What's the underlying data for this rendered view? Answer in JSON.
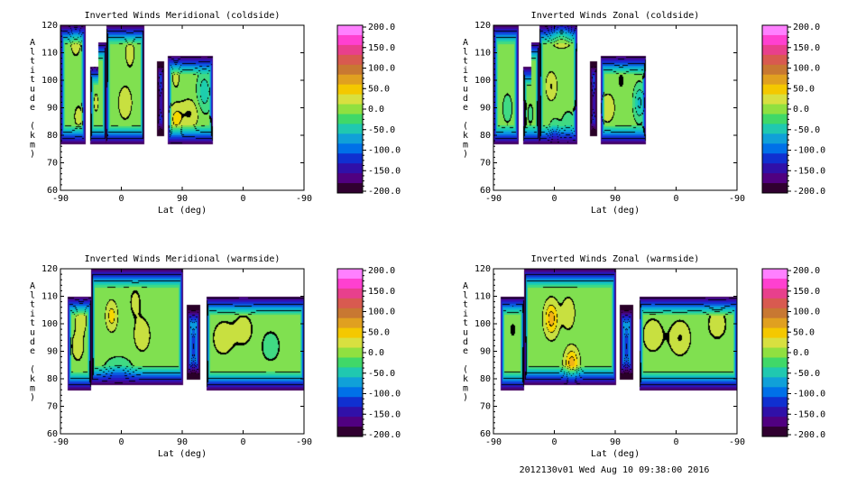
{
  "footer": "2012130v01 Wed Aug 10 09:38:00 2016",
  "colorbar": {
    "ticks": [
      "200.0",
      "150.0",
      "100.0",
      "50.0",
      "0.0",
      "-50.0",
      "-100.0",
      "-150.0",
      "-200.0"
    ],
    "colors": [
      "#ff80ff",
      "#ff40d0",
      "#e8408c",
      "#d85a50",
      "#c87832",
      "#e0a020",
      "#f4c800",
      "#d8e040",
      "#90e040",
      "#40d868",
      "#20c8b0",
      "#10a0d8",
      "#0070e8",
      "#1030d0",
      "#3010a8",
      "#500080",
      "#300030"
    ]
  },
  "colormap_stops": [
    {
      "v": -200,
      "c": "#2a0028"
    },
    {
      "v": -170,
      "c": "#50007a"
    },
    {
      "v": -140,
      "c": "#2818c0"
    },
    {
      "v": -110,
      "c": "#0a40e0"
    },
    {
      "v": -80,
      "c": "#0a98e0"
    },
    {
      "v": -50,
      "c": "#10c8c0"
    },
    {
      "v": -25,
      "c": "#30d890"
    },
    {
      "v": 0,
      "c": "#80e050"
    },
    {
      "v": 20,
      "c": "#c8e040"
    },
    {
      "v": 40,
      "c": "#f8d800"
    },
    {
      "v": 70,
      "c": "#f0a020"
    },
    {
      "v": 100,
      "c": "#e07840"
    },
    {
      "v": 130,
      "c": "#e84a78"
    },
    {
      "v": 170,
      "c": "#ff40c0"
    },
    {
      "v": 200,
      "c": "#ff80ff"
    }
  ],
  "chart_data": [
    {
      "type": "heatmap",
      "title": "Inverted Winds Meridional (coldside)",
      "xlabel": "Lat (deg)",
      "ylabel": "Altitude (km)",
      "xticks": [
        "-90",
        "0",
        "90",
        "0",
        "-90"
      ],
      "yticks": [
        "60",
        "70",
        "80",
        "90",
        "100",
        "110",
        "120"
      ],
      "ylim": [
        60,
        120
      ],
      "zlim": [
        -200,
        200
      ],
      "contours": true,
      "segments": [
        {
          "lat_range": [
            -90,
            -54
          ],
          "alt_range": [
            77,
            120
          ],
          "bumps": [
            [
              -68,
              115,
              25,
              8,
              6
            ],
            [
              -64,
              87,
              16,
              8,
              5
            ]
          ]
        },
        {
          "lat_range": [
            -47,
            -23
          ],
          "alt_range": [
            77,
            105
          ],
          "top_step": {
            "lat": -34,
            "from": 105,
            "to": 114
          },
          "bumps": [
            [
              -40,
              108,
              20,
              4,
              4
            ],
            [
              -38,
              92,
              18,
              4,
              4
            ]
          ]
        },
        {
          "lat_range": [
            -23,
            33
          ],
          "alt_range": [
            77,
            120
          ],
          "bumps": [
            [
              -25,
              90,
              22,
              8,
              5
            ],
            [
              5,
              92,
              26,
              10,
              6
            ],
            [
              12,
              110,
              18,
              8,
              6
            ]
          ]
        },
        {
          "lat_range": [
            52,
            63
          ],
          "alt_range": [
            80,
            107
          ],
          "floor": -60,
          "bumps": [
            [
              57,
              92,
              -60,
              3,
              8
            ]
          ]
        },
        {
          "lat_range": [
            68,
            135
          ],
          "alt_range": [
            77,
            109
          ],
          "bumps": [
            [
              80,
              86,
              35,
              10,
              5
            ],
            [
              100,
              88,
              30,
              14,
              5
            ],
            [
              122,
              96,
              -45,
              10,
              7
            ],
            [
              80,
              102,
              20,
              6,
              5
            ]
          ]
        }
      ]
    },
    {
      "type": "heatmap",
      "title": "Inverted Winds Zonal (coldside)",
      "xlabel": "Lat (deg)",
      "ylabel": "Altitude (km)",
      "xticks": [
        "-90",
        "0",
        "90",
        "0",
        "-90"
      ],
      "yticks": [
        "60",
        "70",
        "80",
        "90",
        "100",
        "110",
        "120"
      ],
      "ylim": [
        60,
        120
      ],
      "zlim": [
        -200,
        200
      ],
      "contours": true,
      "segments": [
        {
          "lat_range": [
            -90,
            -54
          ],
          "alt_range": [
            77,
            120
          ],
          "bumps": [
            [
              -70,
              90,
              -20,
              8,
              6
            ]
          ]
        },
        {
          "lat_range": [
            -47,
            -23
          ],
          "alt_range": [
            77,
            105
          ],
          "top_step": {
            "lat": -34,
            "from": 105,
            "to": 114
          },
          "bumps": [
            [
              -36,
              88,
              -15,
              6,
              5
            ]
          ]
        },
        {
          "lat_range": [
            -23,
            33
          ],
          "alt_range": [
            77,
            120
          ],
          "bumps": [
            [
              -5,
              98,
              30,
              8,
              5
            ],
            [
              10,
              117,
              55,
              15,
              4
            ],
            [
              20,
              84,
              -25,
              10,
              5
            ],
            [
              0,
              82,
              -30,
              8,
              4
            ]
          ]
        },
        {
          "lat_range": [
            52,
            63
          ],
          "alt_range": [
            80,
            107
          ],
          "floor": -60,
          "bumps": [
            [
              57,
              92,
              -60,
              3,
              8
            ]
          ]
        },
        {
          "lat_range": [
            68,
            135
          ],
          "alt_range": [
            77,
            109
          ],
          "bumps": [
            [
              78,
              90,
              28,
              10,
              5
            ],
            [
              125,
              92,
              -55,
              8,
              6
            ],
            [
              98,
              100,
              10,
              10,
              6
            ]
          ]
        }
      ]
    },
    {
      "type": "heatmap",
      "title": "Inverted Winds Meridional (warmside)",
      "xlabel": "Lat (deg)",
      "ylabel": "Altitude (km)",
      "xticks": [
        "-90",
        "0",
        "90",
        "0",
        "-90"
      ],
      "yticks": [
        "60",
        "70",
        "80",
        "90",
        "100",
        "110",
        "120"
      ],
      "ylim": [
        60,
        120
      ],
      "zlim": [
        -200,
        200
      ],
      "contours": true,
      "segments": [
        {
          "lat_range": [
            -80,
            -45
          ],
          "alt_range": [
            76,
            110
          ],
          "top_step": {
            "lat": -45,
            "from": 110,
            "to": 120
          },
          "bumps": [
            [
              -65,
              92,
              20,
              10,
              6
            ],
            [
              -60,
              102,
              25,
              8,
              5
            ]
          ]
        },
        {
          "lat_range": [
            -45,
            90
          ],
          "alt_range": [
            78,
            120
          ],
          "bumps": [
            [
              -15,
              103,
              40,
              8,
              5
            ],
            [
              30,
              96,
              25,
              12,
              6
            ],
            [
              20,
              108,
              15,
              10,
              6
            ],
            [
              -5,
              84,
              -30,
              20,
              4
            ]
          ]
        },
        {
          "lat_range": [
            96,
            116
          ],
          "alt_range": [
            80,
            107
          ],
          "floor": -60,
          "bumps": [
            [
              106,
              92,
              -70,
              4,
              7
            ]
          ]
        },
        {
          "lat_range": [
            125,
            270
          ],
          "alt_range": [
            76,
            110
          ],
          "bumps": [
            [
              150,
              95,
              25,
              15,
              6
            ],
            [
              180,
              98,
              20,
              15,
              6
            ],
            [
              220,
              92,
              -20,
              15,
              6
            ]
          ]
        }
      ]
    },
    {
      "type": "heatmap",
      "title": "Inverted Winds Zonal (warmside)",
      "xlabel": "Lat (deg)",
      "ylabel": "Altitude (km)",
      "xticks": [
        "-90",
        "0",
        "90",
        "0",
        "-90"
      ],
      "yticks": [
        "60",
        "70",
        "80",
        "90",
        "100",
        "110",
        "120"
      ],
      "ylim": [
        60,
        120
      ],
      "zlim": [
        -200,
        200
      ],
      "contours": true,
      "segments": [
        {
          "lat_range": [
            -80,
            -45
          ],
          "alt_range": [
            76,
            110
          ],
          "top_step": {
            "lat": -45,
            "from": 110,
            "to": 120
          },
          "bumps": [
            [
              -62,
              98,
              10,
              10,
              6
            ]
          ]
        },
        {
          "lat_range": [
            -45,
            90
          ],
          "alt_range": [
            78,
            120
          ],
          "bumps": [
            [
              -5,
              102,
              60,
              10,
              6
            ],
            [
              25,
              86,
              60,
              10,
              5
            ],
            [
              20,
              104,
              25,
              10,
              6
            ],
            [
              -55,
              88,
              -10,
              10,
              6
            ]
          ]
        },
        {
          "lat_range": [
            96,
            116
          ],
          "alt_range": [
            80,
            107
          ],
          "floor": -60,
          "bumps": [
            [
              106,
              92,
              -70,
              4,
              7
            ]
          ]
        },
        {
          "lat_range": [
            125,
            270
          ],
          "alt_range": [
            76,
            110
          ],
          "bumps": [
            [
              145,
              96,
              25,
              15,
              6
            ],
            [
              185,
              95,
              30,
              15,
              6
            ],
            [
              240,
              100,
              20,
              15,
              6
            ]
          ]
        }
      ]
    }
  ]
}
